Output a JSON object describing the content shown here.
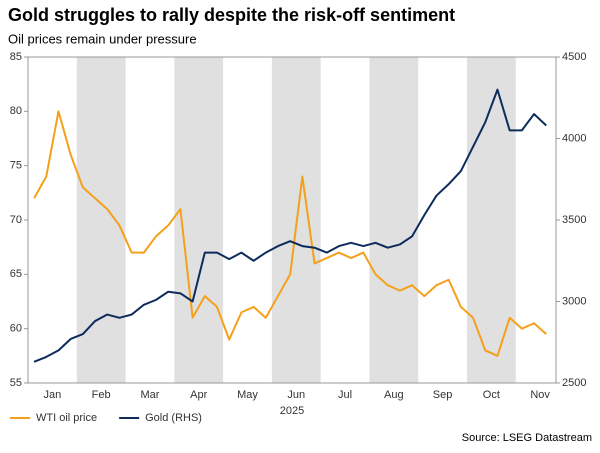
{
  "chart_data": {
    "type": "line",
    "title": "Gold struggles to rally despite the risk-off sentiment",
    "subtitle": "Oil prices remain under pressure",
    "x_label": "2025",
    "source": "Source: LSEG Datastream",
    "categories": [
      null,
      null,
      "Jan",
      null,
      null,
      null,
      "Feb",
      null,
      null,
      null,
      "Mar",
      null,
      null,
      null,
      "Apr",
      null,
      null,
      null,
      "May",
      null,
      null,
      null,
      "Jun",
      null,
      null,
      null,
      "Jul",
      null,
      null,
      null,
      "Aug",
      null,
      null,
      null,
      "Sep",
      null,
      null,
      null,
      "Oct",
      null,
      null,
      null,
      "Nov"
    ],
    "series": [
      {
        "name": "WTI oil price",
        "color": "#f5a01a",
        "axis": "y",
        "values": [
          72,
          74,
          80,
          76,
          73,
          72,
          71,
          69.5,
          67,
          67,
          68.5,
          69.5,
          71,
          61,
          63,
          62,
          59,
          61.5,
          62,
          61,
          63,
          65,
          74,
          66,
          66.5,
          67,
          66.5,
          67,
          65,
          64,
          63.5,
          64,
          63,
          64,
          64.5,
          62,
          61,
          58,
          57.5,
          61,
          60,
          60.5,
          59.5
        ]
      },
      {
        "name": "Gold (RHS)",
        "color": "#0d2c5c",
        "axis": "y2",
        "values": [
          2630,
          2660,
          2700,
          2770,
          2800,
          2880,
          2920,
          2900,
          2920,
          2980,
          3010,
          3060,
          3050,
          3000,
          3300,
          3300,
          3260,
          3300,
          3250,
          3300,
          3340,
          3370,
          3340,
          3330,
          3300,
          3340,
          3360,
          3340,
          3360,
          3330,
          3350,
          3400,
          3530,
          3650,
          3720,
          3800,
          3950,
          4100,
          4300,
          4050,
          4050,
          4150,
          4080
        ]
      }
    ],
    "ylim": [
      55,
      85
    ],
    "yticks": [
      55,
      60,
      65,
      70,
      75,
      80,
      85
    ],
    "y2lim": [
      2500,
      4500
    ],
    "y2ticks": [
      2500,
      3000,
      3500,
      4000,
      4500
    ],
    "shaded_alternate_months": true,
    "legend": "bottom-left"
  }
}
